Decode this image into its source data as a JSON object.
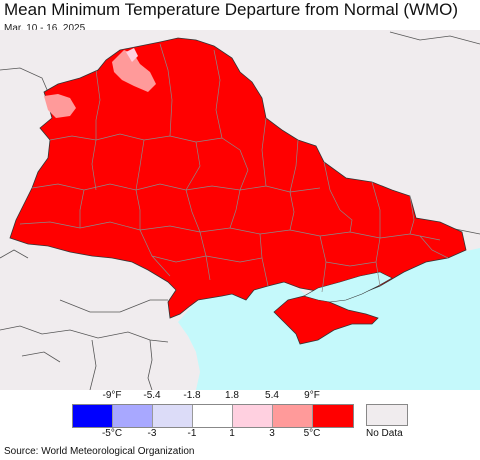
{
  "title": "Mean Minimum Temperature Departure from Normal (WMO)",
  "date_range": "Mar. 10 - 16, 2025",
  "source": "Source: World Meteorological Organization",
  "colors": {
    "land_outside": "#f0ecee",
    "sea": "#c5f9fb",
    "above_5c": "#ff0000",
    "border_internal": "#8a8a8a",
    "border_outer": "#333333"
  },
  "legend": {
    "fahrenheit_labels": [
      "-9°F",
      "-5.4",
      "-1.8",
      "1.8",
      "5.4",
      "9°F"
    ],
    "celsius_labels": [
      "-5°C",
      "-3",
      "-1",
      "1",
      "3",
      "5°C"
    ],
    "classes": [
      {
        "color": "#0000ff"
      },
      {
        "color": "#a8a8ff"
      },
      {
        "color": "#dcdcf8"
      },
      {
        "color": "#ffffff"
      },
      {
        "color": "#ffd0e0"
      },
      {
        "color": "#ff9a9a"
      },
      {
        "color": "#ff0000"
      }
    ],
    "no_data": {
      "label": "No Data",
      "color": "#f0ecee"
    }
  }
}
